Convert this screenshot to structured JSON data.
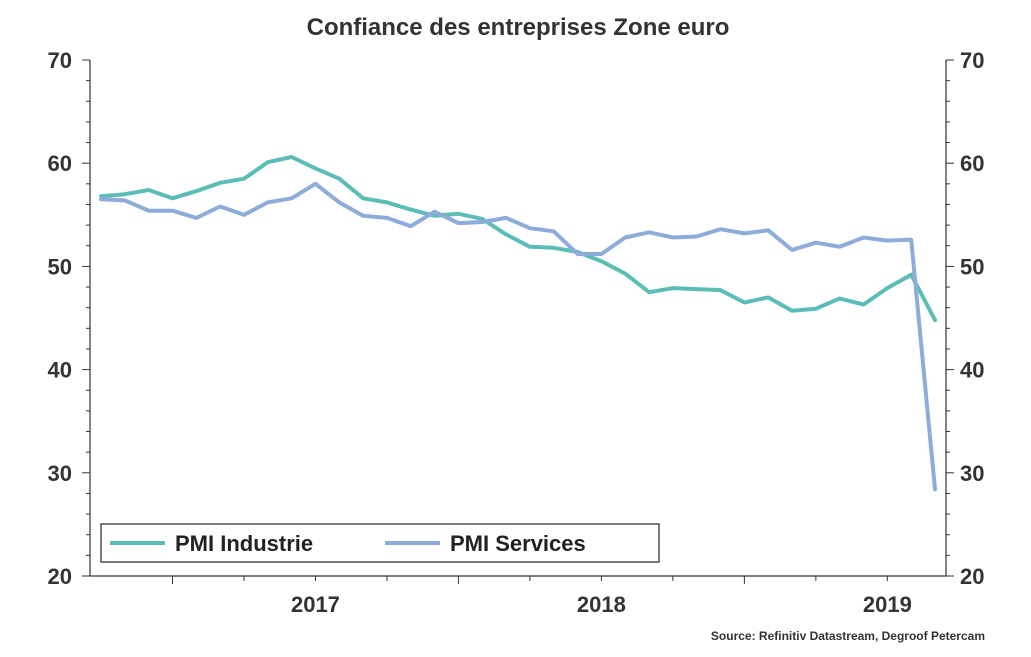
{
  "chart_data": {
    "type": "line",
    "title": "Confiance des entreprises Zone euro",
    "source": "Source: Refinitiv Datastream, Degroof Petercam",
    "xlabel": "",
    "ylabel": "",
    "ylim": [
      20,
      70
    ],
    "yticks": [
      "20",
      "30",
      "40",
      "50",
      "60",
      "70"
    ],
    "year_labels": [
      "2017",
      "2018",
      "2019"
    ],
    "legend_position": "bottom-left",
    "series": [
      {
        "name": "PMI Industrie",
        "color": "#5BBDB6",
        "values": [
          56.8,
          57.0,
          57.4,
          56.6,
          57.3,
          58.1,
          58.5,
          60.1,
          60.6,
          59.5,
          58.5,
          56.6,
          56.2,
          55.5,
          54.9,
          55.1,
          54.6,
          53.1,
          51.9,
          51.8,
          51.4,
          50.5,
          49.3,
          47.5,
          47.9,
          47.8,
          47.7,
          46.5,
          47.0,
          45.7,
          45.9,
          46.9,
          46.3,
          47.9,
          49.2,
          44.8
        ]
      },
      {
        "name": "PMI Services",
        "color": "#8EACD9",
        "values": [
          56.5,
          56.4,
          55.4,
          55.4,
          54.7,
          55.8,
          55.0,
          56.2,
          56.6,
          58.0,
          56.2,
          54.9,
          54.7,
          53.9,
          55.3,
          54.2,
          54.3,
          54.7,
          53.7,
          53.4,
          51.2,
          51.2,
          52.8,
          53.3,
          52.8,
          52.9,
          53.6,
          53.2,
          53.5,
          51.6,
          52.3,
          51.9,
          52.8,
          52.5,
          52.6,
          28.4
        ]
      }
    ]
  }
}
